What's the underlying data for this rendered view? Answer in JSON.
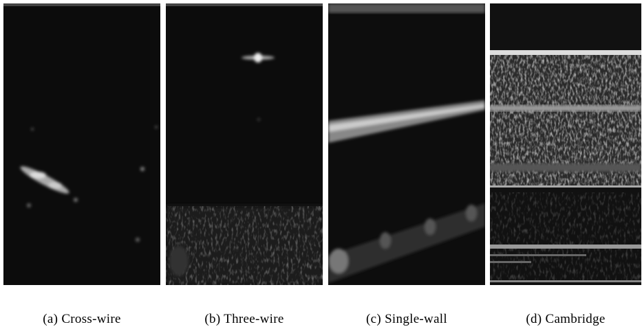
{
  "figure": {
    "panels": [
      {
        "caption": "(a) Cross-wire"
      },
      {
        "caption": "(b) Three-wire"
      },
      {
        "caption": "(c) Single-wall"
      },
      {
        "caption": "(d) Cambridge"
      }
    ]
  }
}
